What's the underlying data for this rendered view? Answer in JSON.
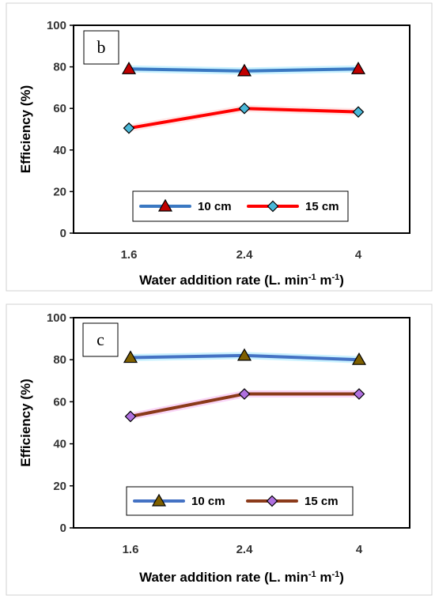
{
  "chart_data": [
    {
      "type": "line",
      "panel_label": "b",
      "categories": [
        "1.6",
        "2.4",
        "4"
      ],
      "series": [
        {
          "name": "10 cm",
          "values": [
            79,
            78,
            79
          ],
          "line_color": "#3a78c2",
          "marker": "triangle",
          "marker_color": "#c00000"
        },
        {
          "name": "15 cm",
          "values": [
            50.5,
            60,
            58.3
          ],
          "line_color": "#ff0000",
          "marker": "diamond",
          "marker_color": "#4ab8d8"
        }
      ],
      "xlabel": "Water addition rate (L. min",
      "xlabel_sup1": "-1",
      "xlabel_mid": " m",
      "xlabel_sup2": "-1",
      "xlabel_end": ")",
      "ylabel": "Efficiency (%)",
      "ylim": [
        0,
        100
      ],
      "yticks": [
        "0",
        "20",
        "40",
        "60",
        "80",
        "100"
      ],
      "grid": false,
      "legend": "bottom-center"
    },
    {
      "type": "line",
      "panel_label": "c",
      "categories": [
        "1.6",
        "2.4",
        "4"
      ],
      "series": [
        {
          "name": "10 cm",
          "values": [
            81,
            82,
            80
          ],
          "line_color": "#4472c4",
          "marker": "triangle",
          "marker_color": "#7f6000"
        },
        {
          "name": "15 cm",
          "values": [
            53,
            63.7,
            63.7
          ],
          "line_color": "#8b3a1a",
          "marker": "diamond",
          "marker_color": "#b070e0"
        }
      ],
      "xlabel": "Water addition rate (L. min",
      "xlabel_sup1": "-1",
      "xlabel_mid": " m",
      "xlabel_sup2": "-1",
      "xlabel_end": ")",
      "ylabel": "Efficiency (%)",
      "ylim": [
        0,
        100
      ],
      "yticks": [
        "0",
        "20",
        "40",
        "60",
        "80",
        "100"
      ],
      "grid": false,
      "legend": "bottom-center"
    }
  ]
}
